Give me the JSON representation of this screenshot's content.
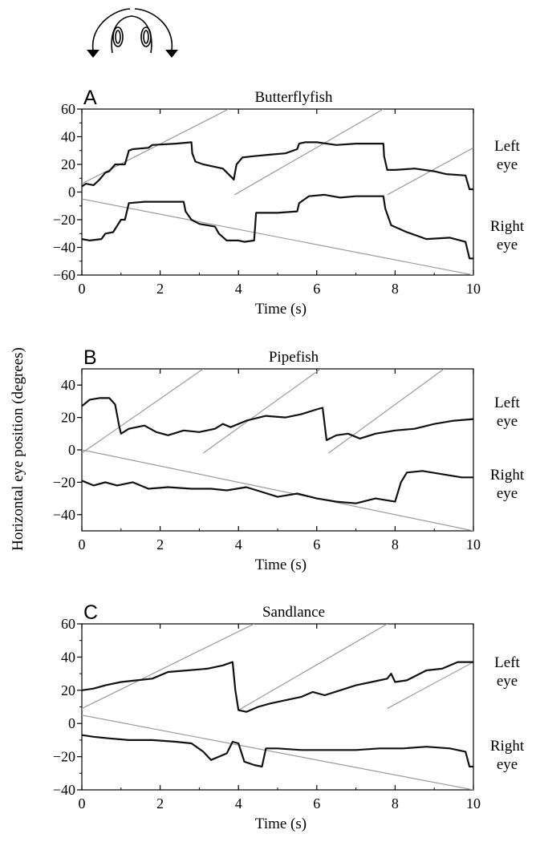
{
  "figure": {
    "ylabel": "Horizontal eye position (degrees)"
  },
  "chart_data": [
    {
      "type": "line",
      "panel_letter": "A",
      "title": "Butterflyfish",
      "xlabel": "Time (s)",
      "ylabel": "",
      "xlim": [
        0,
        10
      ],
      "ylim": [
        -60,
        60
      ],
      "x_ticks": [
        0,
        2,
        4,
        6,
        8,
        10
      ],
      "y_ticks": [
        -60,
        -40,
        -20,
        0,
        20,
        40,
        60
      ],
      "grid": false,
      "series": [
        {
          "label": "Left eye",
          "x": [
            0,
            0.1,
            0.3,
            0.45,
            0.6,
            0.7,
            0.85,
            1.1,
            1.2,
            1.3,
            1.7,
            1.8,
            2.4,
            2.8,
            2.82,
            2.9,
            3.1,
            3.6,
            3.85,
            3.88,
            3.95,
            4.1,
            4.4,
            4.8,
            5.2,
            5.5,
            5.55,
            5.7,
            6.0,
            6.5,
            7.0,
            7.7,
            7.72,
            7.8,
            8.0,
            8.5,
            9.0,
            9.3,
            9.8,
            9.9,
            10
          ],
          "y": [
            4,
            6,
            5,
            9,
            14,
            15,
            20,
            20,
            30,
            31,
            32,
            34,
            35,
            36,
            28,
            22,
            20,
            17,
            10,
            9,
            20,
            25,
            26,
            27,
            28,
            31,
            35,
            36,
            36,
            34,
            35,
            35,
            26,
            16,
            16,
            17,
            15,
            13,
            12,
            2,
            2
          ]
        },
        {
          "label": "Right eye",
          "x": [
            0,
            0.2,
            0.5,
            0.6,
            0.8,
            1.0,
            1.1,
            1.2,
            1.6,
            1.8,
            2.6,
            2.65,
            2.8,
            3.0,
            3.4,
            3.5,
            3.7,
            4.0,
            4.15,
            4.4,
            4.45,
            4.6,
            5.0,
            5.5,
            5.55,
            5.8,
            6.2,
            6.6,
            7.0,
            7.5,
            7.7,
            7.75,
            7.9,
            8.3,
            8.8,
            9.4,
            9.8,
            9.9,
            10
          ],
          "y": [
            -34,
            -35,
            -34,
            -30,
            -29,
            -20,
            -20,
            -8,
            -7,
            -7,
            -7,
            -14,
            -20,
            -23,
            -25,
            -30,
            -35,
            -35,
            -36,
            -35,
            -15,
            -15,
            -15,
            -14,
            -8,
            -3,
            -2,
            -4,
            -3,
            -3,
            -3,
            -12,
            -24,
            -29,
            -34,
            -33,
            -36,
            -48,
            -48
          ]
        }
      ],
      "stimulus_lines": [
        {
          "x": [
            0,
            3.75
          ],
          "y": [
            6,
            60
          ]
        },
        {
          "x": [
            3.9,
            7.7
          ],
          "y": [
            -2,
            60
          ]
        },
        {
          "x": [
            7.8,
            10
          ],
          "y": [
            -2,
            32
          ]
        },
        {
          "x": [
            0,
            10
          ],
          "y": [
            -5,
            -60
          ]
        }
      ],
      "annotations": [
        {
          "text": "Left eye",
          "lines": [
            "Left",
            "eye"
          ]
        },
        {
          "text": "Right eye",
          "lines": [
            "Right",
            "eye"
          ]
        }
      ]
    },
    {
      "type": "line",
      "panel_letter": "B",
      "title": "Pipefish",
      "xlabel": "Time (s)",
      "ylabel": "",
      "xlim": [
        0,
        10
      ],
      "ylim": [
        -50,
        50
      ],
      "x_ticks": [
        0,
        2,
        4,
        6,
        8,
        10
      ],
      "y_ticks": [
        -40,
        -20,
        0,
        20,
        40
      ],
      "grid": false,
      "series": [
        {
          "label": "Left eye",
          "x": [
            0,
            0.2,
            0.45,
            0.7,
            0.85,
            0.95,
            1.0,
            1.2,
            1.6,
            1.9,
            2.2,
            2.6,
            3.0,
            3.4,
            3.6,
            3.8,
            4.2,
            4.7,
            5.2,
            5.6,
            6.0,
            6.15,
            6.25,
            6.5,
            6.8,
            7.1,
            7.5,
            8.0,
            8.5,
            9.0,
            9.5,
            10
          ],
          "y": [
            27,
            31,
            32,
            32,
            28,
            15,
            10,
            13,
            15,
            11,
            9,
            12,
            11,
            13,
            16,
            14,
            18,
            21,
            20,
            22,
            25,
            26,
            6,
            9,
            10,
            7,
            10,
            12,
            13,
            16,
            18,
            19
          ]
        },
        {
          "label": "Right eye",
          "x": [
            0,
            0.3,
            0.6,
            0.9,
            1.3,
            1.7,
            2.2,
            2.8,
            3.3,
            3.7,
            4.2,
            4.6,
            5.0,
            5.5,
            6.0,
            6.5,
            7.0,
            7.5,
            8.0,
            8.15,
            8.3,
            8.7,
            9.2,
            9.7,
            10
          ],
          "y": [
            -19,
            -22,
            -20,
            -22,
            -20,
            -24,
            -23,
            -24,
            -24,
            -25,
            -23,
            -26,
            -29,
            -27,
            -30,
            -32,
            -33,
            -30,
            -32,
            -20,
            -14,
            -13,
            -15,
            -17,
            -17
          ]
        }
      ],
      "stimulus_lines": [
        {
          "x": [
            0,
            3.1
          ],
          "y": [
            -2,
            50
          ]
        },
        {
          "x": [
            3.1,
            6.1
          ],
          "y": [
            -2,
            50
          ]
        },
        {
          "x": [
            6.3,
            9.25
          ],
          "y": [
            -2,
            50
          ]
        },
        {
          "x": [
            0,
            10
          ],
          "y": [
            0,
            -50
          ]
        }
      ],
      "annotations": [
        {
          "text": "Left eye",
          "lines": [
            "Left",
            "eye"
          ]
        },
        {
          "text": "Right eye",
          "lines": [
            "Right",
            "eye"
          ]
        }
      ]
    },
    {
      "type": "line",
      "panel_letter": "C",
      "title": "Sandlance",
      "xlabel": "Time (s)",
      "ylabel": "",
      "xlim": [
        0,
        10
      ],
      "ylim": [
        -40,
        60
      ],
      "x_ticks": [
        0,
        2,
        4,
        6,
        8,
        10
      ],
      "y_ticks": [
        -40,
        -20,
        0,
        20,
        40,
        60
      ],
      "grid": false,
      "series": [
        {
          "label": "Left eye",
          "x": [
            0,
            0.3,
            0.6,
            1.0,
            1.4,
            1.8,
            2.2,
            2.7,
            3.2,
            3.6,
            3.85,
            3.92,
            4.0,
            4.2,
            4.5,
            4.8,
            5.2,
            5.6,
            5.9,
            6.2,
            6.6,
            7.0,
            7.4,
            7.8,
            7.9,
            8.0,
            8.3,
            8.8,
            9.2,
            9.6,
            10
          ],
          "y": [
            20,
            21,
            23,
            25,
            26,
            27,
            31,
            32,
            33,
            35,
            37,
            20,
            8,
            7,
            10,
            12,
            14,
            16,
            19,
            17,
            20,
            23,
            25,
            27,
            30,
            25,
            26,
            32,
            33,
            37,
            37
          ]
        },
        {
          "label": "Right eye",
          "x": [
            0,
            0.3,
            0.7,
            1.2,
            1.8,
            2.4,
            2.8,
            3.1,
            3.3,
            3.5,
            3.7,
            3.85,
            4.0,
            4.15,
            4.4,
            4.6,
            4.7,
            5.0,
            5.6,
            6.3,
            7.0,
            7.6,
            8.2,
            8.8,
            9.4,
            9.8,
            9.9,
            10
          ],
          "y": [
            -7,
            -8,
            -9,
            -10,
            -10,
            -11,
            -12,
            -17,
            -22,
            -20,
            -18,
            -11,
            -12,
            -23,
            -25,
            -26,
            -15,
            -15,
            -16,
            -16,
            -16,
            -15,
            -15,
            -14,
            -15,
            -17,
            -26,
            -26
          ]
        }
      ],
      "stimulus_lines": [
        {
          "x": [
            0,
            4.4
          ],
          "y": [
            9,
            60
          ]
        },
        {
          "x": [
            4.0,
            7.8
          ],
          "y": [
            8,
            60
          ]
        },
        {
          "x": [
            7.8,
            10
          ],
          "y": [
            9,
            37
          ]
        },
        {
          "x": [
            0,
            10
          ],
          "y": [
            5,
            -40
          ]
        }
      ],
      "annotations": [
        {
          "text": "Left eye",
          "lines": [
            "Left",
            "eye"
          ]
        },
        {
          "text": "Right eye",
          "lines": [
            "Right",
            "eye"
          ]
        }
      ]
    }
  ]
}
